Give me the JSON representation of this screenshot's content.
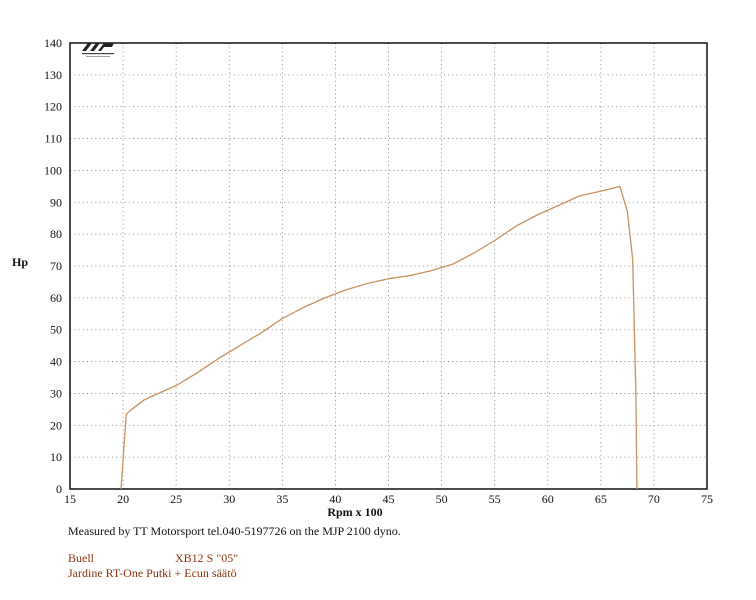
{
  "colors": {
    "curve": "#c8925e",
    "grid": "#888888",
    "frame": "#111111",
    "vehicle_text": "#8a3510"
  },
  "caption": "Measured by TT Motorsport tel.040-5197726 on the MJP 2100 dyno.",
  "vehicle": {
    "make": "Buell",
    "model": "XB12 S \"05\"",
    "mods": "Jardine RT-One Putki + Ecun säätö"
  },
  "logo": {
    "icon": "mjp-dyno-logo-icon"
  },
  "chart_data": {
    "type": "line",
    "title": "",
    "xlabel": "Rpm x 100",
    "ylabel": "Hp",
    "xlim": [
      15,
      75
    ],
    "ylim": [
      0,
      140
    ],
    "xticks": [
      15,
      20,
      25,
      30,
      35,
      40,
      45,
      50,
      55,
      60,
      65,
      70,
      75
    ],
    "yticks": [
      0,
      10,
      20,
      30,
      40,
      50,
      60,
      70,
      80,
      90,
      100,
      110,
      120,
      130,
      140
    ],
    "grid": true,
    "legend": "none",
    "series": [
      {
        "name": "",
        "x": [
          19.8,
          20.3,
          21.0,
          22.0,
          23.0,
          25.0,
          27.0,
          29.0,
          31.0,
          33.0,
          35.0,
          37.0,
          39.0,
          41.0,
          43.0,
          45.0,
          47.0,
          49.0,
          51.0,
          53.0,
          55.0,
          57.0,
          59.0,
          61.0,
          63.0,
          65.0,
          66.0,
          66.8,
          67.5,
          68.0,
          68.3,
          68.4
        ],
        "y": [
          0,
          23.5,
          25.5,
          28.0,
          29.5,
          32.5,
          36.5,
          41.0,
          45.0,
          49.0,
          53.5,
          57.0,
          60.0,
          62.5,
          64.5,
          66.0,
          67.0,
          68.5,
          70.5,
          74.0,
          78.0,
          82.5,
          86.0,
          89.0,
          92.0,
          93.5,
          94.3,
          95.0,
          87.0,
          72.0,
          30.0,
          0
        ]
      }
    ]
  }
}
